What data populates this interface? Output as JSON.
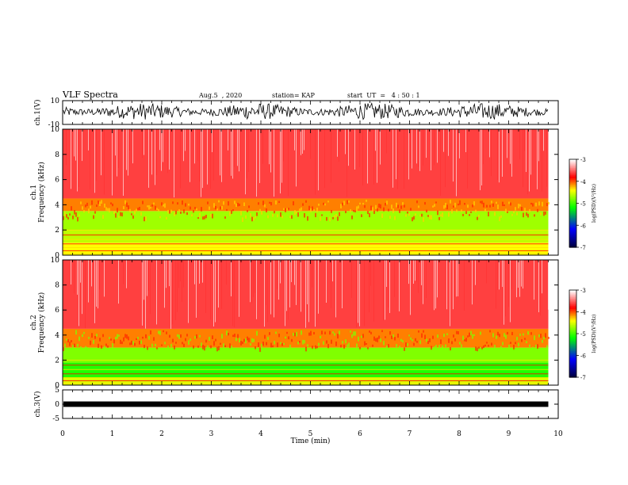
{
  "header": {
    "title": "VLF Spectra",
    "date": "Aug.5  , 2020",
    "station": "station= KAP",
    "start": "start  UT  =   4 : 50 : 1"
  },
  "chart_data": [
    {
      "type": "line",
      "panel": "ch1-waveform",
      "ylabel": "ch.1(V)",
      "ylim": [
        -10,
        10
      ],
      "yticks": [
        "10",
        "-10"
      ],
      "xlim": [
        0,
        10
      ],
      "description_values": "noisy waveform filling approx -6 to +8 V over 0-9.8 min"
    },
    {
      "type": "heatmap",
      "panel": "ch1-spectrogram",
      "ylabel": "ch.1\nFrequency  (kHz)",
      "ylim": [
        0,
        10
      ],
      "yticks": [
        "0",
        "2",
        "4",
        "6",
        "8",
        "10"
      ],
      "xlim": [
        0,
        10
      ],
      "data_xmax": 9.8,
      "bands": [
        {
          "fmin": 0,
          "fmax": 1.0,
          "level": -4.4
        },
        {
          "fmin": 1.0,
          "fmax": 2.0,
          "level": -4.6
        },
        {
          "fmin": 2.0,
          "fmax": 3.5,
          "level": -4.7
        },
        {
          "fmin": 3.5,
          "fmax": 4.5,
          "level": -4.1
        },
        {
          "fmin": 4.5,
          "fmax": 10,
          "level": -3.6
        }
      ]
    },
    {
      "type": "heatmap",
      "panel": "ch2-spectrogram",
      "ylabel": "ch.2\nFrequency  (kHz)",
      "ylim": [
        0,
        10
      ],
      "yticks": [
        "0",
        "2",
        "4",
        "6",
        "8",
        "10"
      ],
      "xlim": [
        0,
        10
      ],
      "data_xmax": 9.8,
      "bands": [
        {
          "fmin": 0,
          "fmax": 0.6,
          "level": -4.5
        },
        {
          "fmin": 0.6,
          "fmax": 1.8,
          "level": -5.1
        },
        {
          "fmin": 1.8,
          "fmax": 3.0,
          "level": -4.8
        },
        {
          "fmin": 3.0,
          "fmax": 4.5,
          "level": -4.1
        },
        {
          "fmin": 4.5,
          "fmax": 10,
          "level": -3.6
        }
      ]
    },
    {
      "type": "line",
      "panel": "ch3-waveform",
      "ylabel": "ch.3(V)",
      "ylim": [
        -5,
        5
      ],
      "yticks": [
        "5",
        "0",
        "-5"
      ],
      "xlim": [
        0,
        10
      ],
      "level_v": 0,
      "amplitude_v": 0.4
    }
  ],
  "colorbar": {
    "label": "log(PSD)(V²/Hz)",
    "range": [
      -7,
      -3
    ],
    "ticks": [
      "-3",
      "-4",
      "-5",
      "-6",
      "-7"
    ],
    "colors": [
      "#ffffff",
      "#ff0000",
      "#ffff00",
      "#00ff00",
      "#0000ff",
      "#000044"
    ]
  },
  "xaxis": {
    "label": "Time  (min)",
    "ticks": [
      "0",
      "1",
      "2",
      "3",
      "4",
      "5",
      "6",
      "7",
      "8",
      "9",
      "10"
    ]
  }
}
